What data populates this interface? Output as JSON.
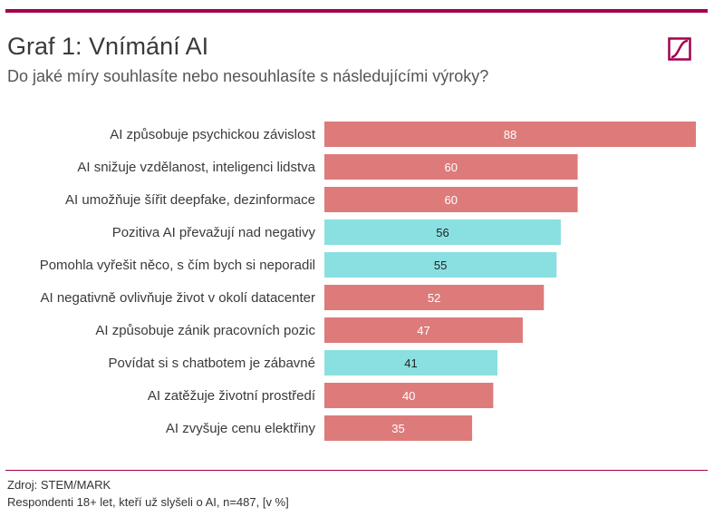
{
  "header": {
    "title": "Graf 1: Vnímání AI",
    "subtitle": "Do jaké míry souhlasíte nebo nesouhlasíte s následujícími výroky?"
  },
  "footer": {
    "source": "Zdroj: STEM/MARK",
    "note": "Respondenti 18+ let, kteří už slyšeli o AI, n=487, [v %]"
  },
  "colors": {
    "accent": "#a3004f",
    "negative": "#dd7b7b",
    "positive": "#8ae0e0"
  },
  "chart_data": {
    "type": "bar",
    "orientation": "horizontal",
    "xlim": [
      0,
      88
    ],
    "grid": false,
    "legend": "none",
    "categories": [
      "AI způsobuje psychickou závislost",
      "AI snižuje vzdělanost, inteligenci lidstva",
      "AI umožňuje šířit deepfake, dezinformace",
      "Pozitiva AI převažují nad negativy",
      "Pomohla vyřešit něco, s čím bych si neporadil",
      "AI negativně ovlivňuje život v okolí datacenter",
      "AI způsobuje zánik pracovních pozic",
      "Povídat si s chatbotem je zábavné",
      "AI zatěžuje životní prostředí",
      "AI zvyšuje cenu elektřiny"
    ],
    "values": [
      88,
      60,
      60,
      56,
      55,
      52,
      47,
      41,
      40,
      35
    ],
    "tones": [
      "negative",
      "negative",
      "negative",
      "positive",
      "positive",
      "negative",
      "negative",
      "positive",
      "negative",
      "negative"
    ]
  }
}
